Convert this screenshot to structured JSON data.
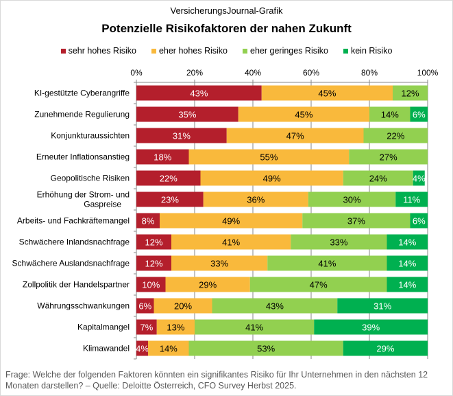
{
  "header": {
    "subtitle": "VersicherungsJournal-Grafik"
  },
  "chart_data": {
    "type": "bar",
    "orientation": "horizontal",
    "stacked": true,
    "title": "Potenzielle Risikofaktoren der nahen Zukunft",
    "xlim": [
      0,
      100
    ],
    "xticks": [
      "0%",
      "20%",
      "40%",
      "60%",
      "80%",
      "100%"
    ],
    "grid": true,
    "legend_position": "top",
    "categories": [
      "KI-gestützte Cyberangriffe",
      "Zunehmende Regulierung",
      "Konjunkturaussichten",
      "Erneuter Inflationsanstieg",
      "Geopolitische Risiken",
      "Erhöhung der Strom- und Gaspreise",
      "Arbeits- und Fachkräftemangel",
      "Schwächere Inlandsnachfrage",
      "Schwächere Auslandsnachfrage",
      "Zollpolitik der Handelspartner",
      "Währungsschwankungen",
      "Kapitalmangel",
      "Klimawandel"
    ],
    "series": [
      {
        "name": "sehr hohes Risiko",
        "color": "#b41f2c",
        "values": [
          43,
          35,
          31,
          18,
          22,
          23,
          8,
          12,
          12,
          10,
          6,
          7,
          4
        ]
      },
      {
        "name": "eher hohes Risiko",
        "color": "#f9b93c",
        "values": [
          45,
          45,
          47,
          55,
          49,
          36,
          49,
          41,
          33,
          29,
          20,
          13,
          14
        ]
      },
      {
        "name": "eher geringes Risiko",
        "color": "#92d050",
        "values": [
          12,
          14,
          22,
          27,
          24,
          30,
          37,
          33,
          41,
          47,
          43,
          41,
          53
        ]
      },
      {
        "name": "kein Risiko",
        "color": "#00b050",
        "values": [
          0,
          6,
          0,
          0,
          4,
          11,
          6,
          14,
          14,
          14,
          31,
          39,
          29
        ]
      }
    ]
  },
  "footer": {
    "note": "Frage: Welche der folgenden  Faktoren könnten ein signifikantes Risiko für Ihr Unternehmen  in den nächsten 12 Monaten darstellen? – Quelle: Deloitte Österreich, CFO Survey Herbst 2025."
  }
}
